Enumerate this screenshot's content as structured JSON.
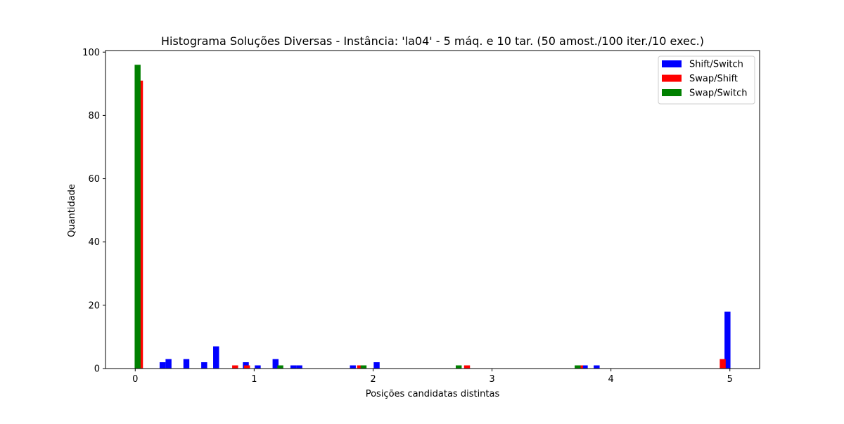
{
  "chart_data": {
    "type": "bar",
    "title": "Histograma Soluções Diversas - Instância: 'la04' - 5 máq. e 10 tar. (50 amost./100 iter./10 exec.)",
    "xlabel": "Posições candidatas distintas",
    "ylabel": "Quantidade",
    "xlim": [
      -0.25,
      5.25
    ],
    "ylim": [
      0,
      100.5
    ],
    "xticks": [
      0,
      1,
      2,
      3,
      4,
      5
    ],
    "xtick_labels": [
      "0",
      "1",
      "2",
      "3",
      "4",
      "5"
    ],
    "yticks": [
      0,
      20,
      40,
      60,
      80,
      100
    ],
    "ytick_labels": [
      "0",
      "20",
      "40",
      "60",
      "80",
      "100"
    ],
    "bin_width": 0.05,
    "grid": false,
    "legend_position": "top-right",
    "series": [
      {
        "name": "Shift/Switch",
        "color": "#0000ff",
        "bins": [
          {
            "x": 0.23,
            "y": 2
          },
          {
            "x": 0.28,
            "y": 3
          },
          {
            "x": 0.43,
            "y": 3
          },
          {
            "x": 0.58,
            "y": 2
          },
          {
            "x": 0.68,
            "y": 7
          },
          {
            "x": 0.93,
            "y": 2
          },
          {
            "x": 1.03,
            "y": 1
          },
          {
            "x": 1.18,
            "y": 3
          },
          {
            "x": 1.33,
            "y": 1
          },
          {
            "x": 1.38,
            "y": 1
          },
          {
            "x": 1.83,
            "y": 1
          },
          {
            "x": 2.03,
            "y": 2
          },
          {
            "x": 3.78,
            "y": 1
          },
          {
            "x": 3.88,
            "y": 1
          },
          {
            "x": 4.98,
            "y": 18
          }
        ]
      },
      {
        "name": "Swap/Shift",
        "color": "#ff0000",
        "bins": [
          {
            "x": 0.04,
            "y": 91
          },
          {
            "x": 0.84,
            "y": 1
          },
          {
            "x": 0.94,
            "y": 1
          },
          {
            "x": 1.89,
            "y": 1
          },
          {
            "x": 2.79,
            "y": 1
          },
          {
            "x": 3.74,
            "y": 1
          },
          {
            "x": 4.94,
            "y": 3
          }
        ]
      },
      {
        "name": "Swap/Switch",
        "color": "#008000",
        "bins": [
          {
            "x": 0.02,
            "y": 96
          },
          {
            "x": 1.22,
            "y": 1
          },
          {
            "x": 1.92,
            "y": 1
          },
          {
            "x": 2.72,
            "y": 1
          },
          {
            "x": 3.72,
            "y": 1
          }
        ]
      }
    ]
  }
}
